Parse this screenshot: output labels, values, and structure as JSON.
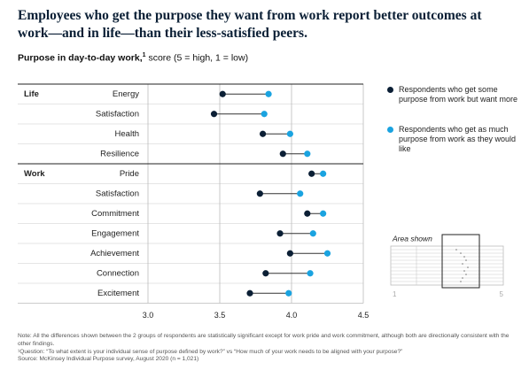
{
  "chart_data": {
    "type": "dumbbell",
    "title": "Employees who get the purpose they want from work report better outcomes at work—and in life—than their less-satisfied peers.",
    "subtitle_bold": "Purpose in day-to-day work,",
    "subtitle_note_ref": "1",
    "subtitle_rest": "score (5 = high, 1 = low)",
    "group_labels": [
      "Life",
      null,
      null,
      null,
      "Work",
      null,
      null,
      null,
      null,
      null,
      null
    ],
    "categories": [
      "Energy",
      "Satisfaction",
      "Health",
      "Resilience",
      "Pride",
      "Satisfaction",
      "Commitment",
      "Engagement",
      "Achievement",
      "Connection",
      "Excitement"
    ],
    "series": [
      {
        "name": "Respondents who get some purpose from work but want more",
        "color": "#0b1f35",
        "values": [
          3.52,
          3.46,
          3.8,
          3.94,
          4.14,
          3.78,
          4.11,
          3.92,
          3.99,
          3.82,
          3.71
        ]
      },
      {
        "name": "Respondents who get as much purpose from work as they would like",
        "color": "#1aa3e0",
        "values": [
          3.84,
          3.81,
          3.99,
          4.11,
          4.22,
          4.06,
          4.22,
          4.15,
          4.25,
          4.13,
          3.98
        ]
      }
    ],
    "xlim": [
      3,
      4.5
    ],
    "xticks": [
      {
        "value": 3,
        "label": "3.0"
      },
      3.5,
      {
        "value": 4,
        "label": "4.0"
      },
      4.5
    ],
    "grid": true,
    "inset": {
      "title": "Area shown",
      "min_label": "1",
      "max_label": "5"
    },
    "notes": [
      "Note: All the differences shown between the 2 groups of respondents are statistically significant except for work pride and work commitment, although both are directionally consistent with the other findings.",
      "¹Question: “To what extent is your individual sense of purpose defined by work?” vs “How much of your work needs to be aligned with your purpose?”",
      "Source: McKinsey Individual Purpose survey, August 2020 (n = 1,021)"
    ]
  }
}
